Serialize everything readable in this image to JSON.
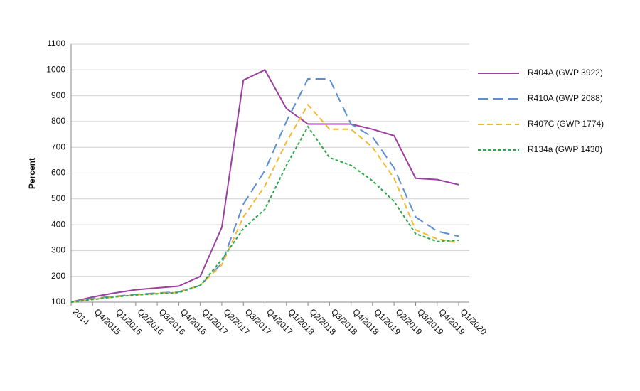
{
  "chart_data": {
    "type": "line",
    "y_label": "Percent",
    "categories": [
      "2014",
      "Q4/2015",
      "Q1/2016",
      "Q2/2016",
      "Q3/2016",
      "Q4/2016",
      "Q1/2017",
      "Q2/2017",
      "Q3/2017",
      "Q4/2017",
      "Q1/2018",
      "Q2/2018",
      "Q3/2018",
      "Q4/2018",
      "Q1/2019",
      "Q2/2019",
      "Q3/2019",
      "Q4/2019",
      "Q1/2020"
    ],
    "series": [
      {
        "name": "R404A (GWP 3922)",
        "color": "#9b3fa0",
        "values": [
          100,
          120,
          135,
          148,
          155,
          162,
          200,
          390,
          960,
          1000,
          850,
          790,
          790,
          790,
          770,
          745,
          580,
          575,
          555
        ]
      },
      {
        "name": "R410A (GWP 2088)",
        "color": "#5b8fd0",
        "values": [
          100,
          115,
          122,
          130,
          135,
          140,
          165,
          250,
          480,
          610,
          800,
          965,
          965,
          790,
          740,
          620,
          430,
          375,
          355
        ]
      },
      {
        "name": "R407C (GWP 1774)",
        "color": "#f5b731",
        "values": [
          100,
          112,
          120,
          128,
          133,
          138,
          165,
          245,
          430,
          550,
          720,
          865,
          770,
          770,
          700,
          580,
          380,
          345,
          330
        ]
      },
      {
        "name": "R134a (GWP 1430)",
        "color": "#2ca84a",
        "values": [
          100,
          110,
          120,
          128,
          132,
          137,
          165,
          265,
          385,
          460,
          630,
          780,
          660,
          630,
          570,
          490,
          365,
          335,
          340
        ]
      }
    ],
    "ylim": [
      100,
      1100
    ],
    "yticks": [
      100,
      200,
      300,
      400,
      500,
      600,
      700,
      800,
      900,
      1000,
      1100
    ],
    "grid": true,
    "legend": "right"
  }
}
